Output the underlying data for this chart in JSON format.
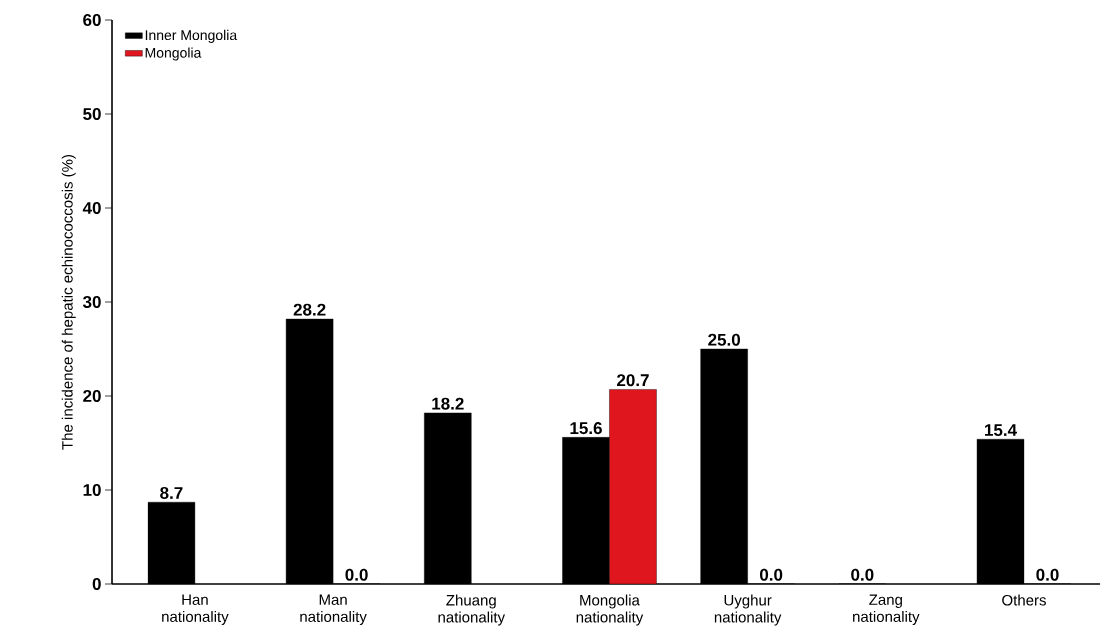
{
  "chart_data": {
    "type": "bar",
    "ylabel": "The incidence of hepatic echinococcosis  (%)",
    "categories": [
      "Han nationality",
      "Man nationality",
      "Zhuang nationality",
      "Mongolia nationality",
      "Uyghur nationality",
      "Zang nationality",
      "Others"
    ],
    "series": [
      {
        "name": "Inner Mongolia",
        "color": "#000000",
        "values": [
          8.7,
          28.2,
          18.2,
          15.6,
          25.0,
          0.0,
          15.4
        ],
        "value_labels": [
          "8.7",
          "28.2",
          "18.2",
          "15.6",
          "25.0",
          "0.0",
          "15.4"
        ]
      },
      {
        "name": "Mongolia",
        "color": "#e0161f",
        "values": [
          null,
          0.0,
          null,
          20.7,
          0.0,
          null,
          0.0
        ],
        "value_labels": [
          null,
          "0.0",
          null,
          "20.7",
          "0.0",
          null,
          "0.0"
        ]
      }
    ],
    "ylim": [
      0,
      60
    ],
    "yticks": [
      0,
      10,
      20,
      30,
      40,
      50,
      60
    ],
    "grid": false,
    "legend": "top left"
  }
}
